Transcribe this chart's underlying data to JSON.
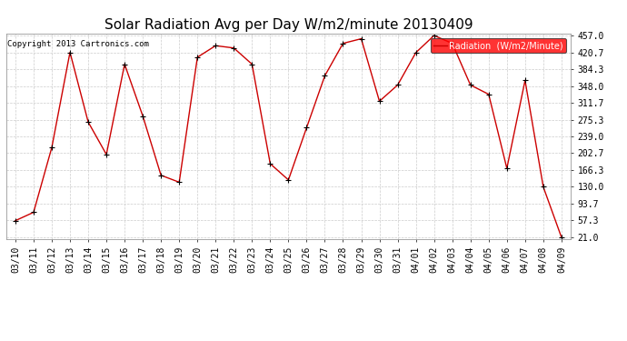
{
  "title": "Solar Radiation Avg per Day W/m2/minute 20130409",
  "copyright": "Copyright 2013 Cartronics.com",
  "legend_label": "Radiation  (W/m2/Minute)",
  "dates": [
    "03/10",
    "03/11",
    "03/12",
    "03/13",
    "03/14",
    "03/15",
    "03/16",
    "03/17",
    "03/18",
    "03/19",
    "03/20",
    "03/21",
    "03/22",
    "03/23",
    "03/24",
    "03/25",
    "03/26",
    "03/27",
    "03/28",
    "03/29",
    "03/30",
    "03/31",
    "04/01",
    "04/02",
    "04/03",
    "04/04",
    "04/05",
    "04/06",
    "04/07",
    "04/08",
    "04/09"
  ],
  "values": [
    57.0,
    75.0,
    215.0,
    420.7,
    270.0,
    200.0,
    395.0,
    283.0,
    155.0,
    140.0,
    410.0,
    435.0,
    430.0,
    395.0,
    180.0,
    145.0,
    258.0,
    370.0,
    440.0,
    450.0,
    315.0,
    350.0,
    420.0,
    457.0,
    440.0,
    350.0,
    330.0,
    170.0,
    360.0,
    130.0,
    21.0
  ],
  "line_color": "#cc0000",
  "marker_color": "#000000",
  "bg_color": "#ffffff",
  "plot_bg_color": "#ffffff",
  "grid_color": "#cccccc",
  "yticks": [
    21.0,
    57.3,
    93.7,
    130.0,
    166.3,
    202.7,
    239.0,
    275.3,
    311.7,
    348.0,
    384.3,
    420.7,
    457.0
  ],
  "ymin": 21.0,
  "ymax": 457.0,
  "title_fontsize": 11,
  "tick_fontsize": 7,
  "copyright_fontsize": 6.5,
  "legend_fontsize": 7
}
